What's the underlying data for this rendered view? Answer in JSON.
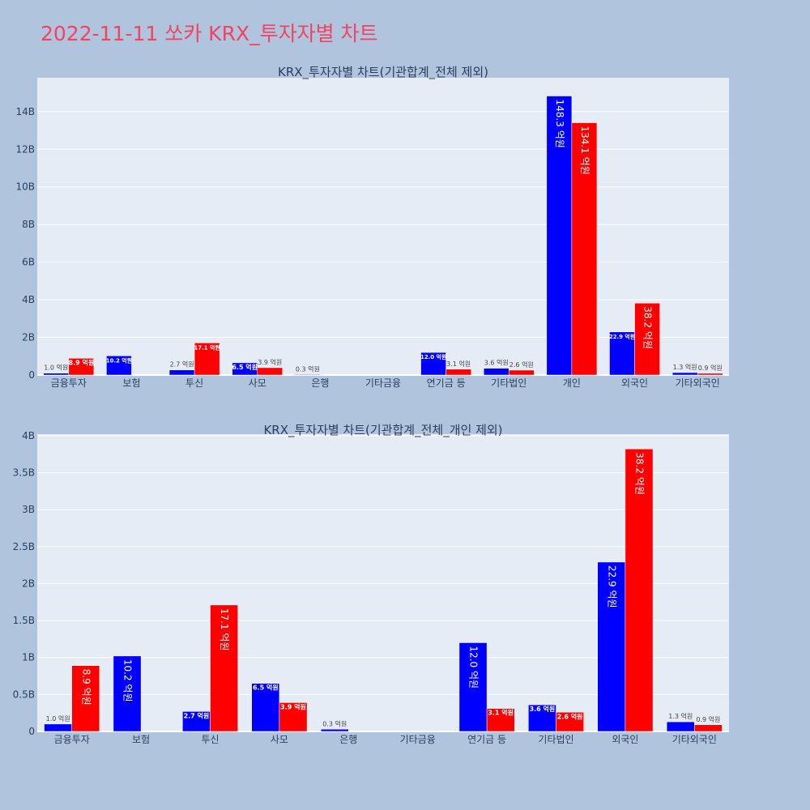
{
  "title": "2022-11-11 쏘카 KRX_투자자별 차트",
  "colors": {
    "series1": "#0000ff",
    "series2": "#ff0000",
    "plot_bg": "#e5ecf6",
    "paper_bg": "#b0c4de",
    "title": "#ef4560"
  },
  "chart_data": [
    {
      "type": "bar",
      "title": "KRX_투자자별 차트(기관합계_전체 제외)",
      "categories": [
        "금융투자",
        "보험",
        "투신",
        "사모",
        "은행",
        "기타금융",
        "연기금 등",
        "기타법인",
        "개인",
        "외국인",
        "기타외국인"
      ],
      "series": [
        {
          "values": [
            0.1,
            1.02,
            0.27,
            0.65,
            0.03,
            0,
            1.2,
            0.36,
            14.83,
            2.29,
            0.13
          ],
          "labels": [
            "1.0 억원",
            "10.2 억원",
            "2.7 억원",
            "6.5 억원",
            "0.3 억원",
            "",
            "12.0 억원",
            "3.6 억원",
            "148.3 억원",
            "22.9 억원",
            "1.3 억원"
          ]
        },
        {
          "values": [
            0.89,
            0,
            1.71,
            0.39,
            0,
            0,
            0.31,
            0.26,
            13.41,
            3.82,
            0.09
          ],
          "labels": [
            "8.9 억원",
            "",
            "17.1 억원",
            "3.9 억원",
            "",
            "",
            "3.1 억원",
            "2.6 억원",
            "134.1 억원",
            "38.2 억원",
            "0.9 억원"
          ]
        }
      ],
      "yticks": [
        "0",
        "2B",
        "4B",
        "6B",
        "8B",
        "10B",
        "12B",
        "14B"
      ],
      "ytick_values": [
        0,
        2,
        4,
        6,
        8,
        10,
        12,
        14
      ],
      "ylim": [
        0,
        15.8
      ],
      "grid": true
    },
    {
      "type": "bar",
      "title": "KRX_투자자별 차트(기관합계_전체_개인 제외)",
      "categories": [
        "금융투자",
        "보험",
        "투신",
        "사모",
        "은행",
        "기타금융",
        "연기금 등",
        "기타법인",
        "외국인",
        "기타외국인"
      ],
      "series": [
        {
          "values": [
            0.1,
            1.02,
            0.27,
            0.65,
            0.03,
            0,
            1.2,
            0.36,
            2.29,
            0.13
          ],
          "labels": [
            "1.0 억원",
            "10.2 억원",
            "2.7 억원",
            "6.5 억원",
            "0.3 억원",
            "",
            "12.0 억원",
            "3.6 억원",
            "22.9 억원",
            "1.3 억원"
          ]
        },
        {
          "values": [
            0.89,
            0,
            1.71,
            0.39,
            0,
            0,
            0.31,
            0.26,
            3.82,
            0.09
          ],
          "labels": [
            "8.9 억원",
            "",
            "17.1 억원",
            "3.9 억원",
            "",
            "",
            "3.1 억원",
            "2.6 억원",
            "38.2 억원",
            "0.9 억원"
          ]
        }
      ],
      "yticks": [
        "0",
        "0.5B",
        "1B",
        "1.5B",
        "2B",
        "2.5B",
        "3B",
        "3.5B",
        "4B"
      ],
      "ytick_values": [
        0,
        0.5,
        1,
        1.5,
        2,
        2.5,
        3,
        3.5,
        4
      ],
      "ylim": [
        0,
        4.02
      ],
      "grid": true
    }
  ]
}
